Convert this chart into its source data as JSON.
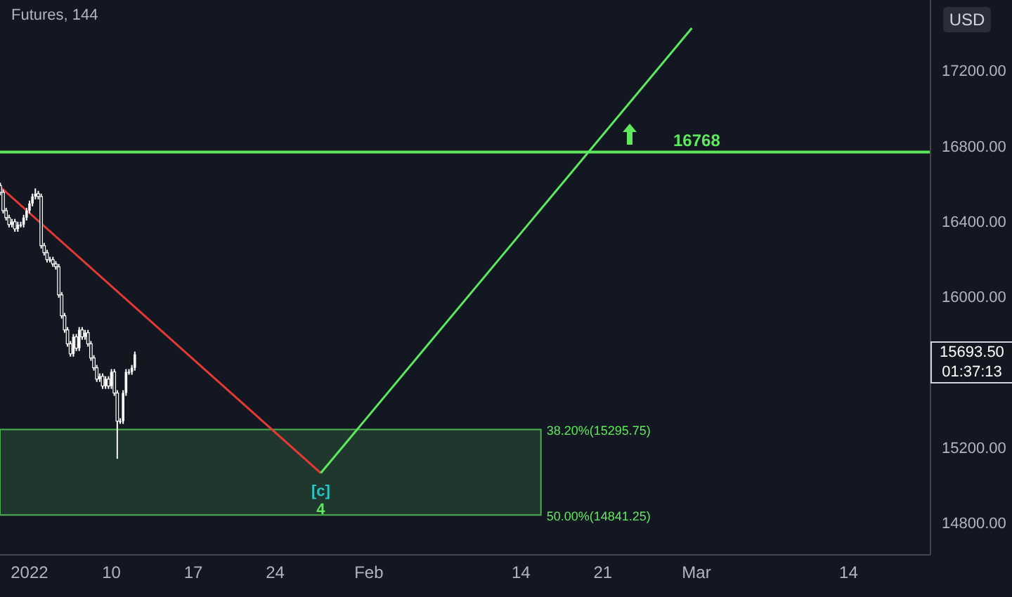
{
  "chart_data": {
    "type": "candlestick",
    "title": "Futures, 144",
    "ylabel": "USD",
    "color": "#ffffff",
    "x": [
      "2021-12-31T12:00",
      "2021-12-31T18:00",
      "2022-01-01T00:00",
      "2022-01-01T06:00",
      "2022-01-01T12:00",
      "2022-01-01T18:00",
      "2022-01-02T00:00",
      "2022-01-02T06:00",
      "2022-01-02T12:00",
      "2022-01-02T18:00",
      "2022-01-03T00:00",
      "2022-01-03T06:00",
      "2022-01-03T12:00",
      "2022-01-03T18:00",
      "2022-01-04T00:00",
      "2022-01-04T06:00",
      "2022-01-04T12:00",
      "2022-01-04T18:00",
      "2022-01-05T00:00",
      "2022-01-05T06:00",
      "2022-01-05T12:00",
      "2022-01-05T18:00",
      "2022-01-06T00:00",
      "2022-01-06T06:00",
      "2022-01-06T12:00",
      "2022-01-06T18:00",
      "2022-01-07T00:00",
      "2022-01-07T06:00",
      "2022-01-07T12:00",
      "2022-01-07T18:00",
      "2022-01-08T00:00",
      "2022-01-08T06:00",
      "2022-01-08T12:00",
      "2022-01-08T18:00",
      "2022-01-09T00:00",
      "2022-01-09T06:00",
      "2022-01-09T12:00",
      "2022-01-09T18:00",
      "2022-01-10T00:00",
      "2022-01-10T06:00",
      "2022-01-10T12:00",
      "2022-01-10T18:00",
      "2022-01-11T00:00",
      "2022-01-11T06:00",
      "2022-01-11T12:00",
      "2022-01-11T18:00",
      "2022-01-12T00:00"
    ],
    "ohlc": [
      [
        16590,
        16605,
        16539,
        16554
      ],
      [
        16554,
        16569,
        16442,
        16457
      ],
      [
        16457,
        16472,
        16405,
        16420
      ],
      [
        16420,
        16435,
        16368,
        16383
      ],
      [
        16383,
        16413,
        16368,
        16398
      ],
      [
        16398,
        16413,
        16345,
        16360
      ],
      [
        16360,
        16398,
        16345,
        16383
      ],
      [
        16383,
        16398,
        16368,
        16383
      ],
      [
        16383,
        16435,
        16368,
        16420
      ],
      [
        16420,
        16472,
        16405,
        16457
      ],
      [
        16457,
        16510,
        16442,
        16495
      ],
      [
        16495,
        16547,
        16480,
        16532
      ],
      [
        16532,
        16575,
        16517,
        16547
      ],
      [
        16547,
        16562,
        16517,
        16532
      ],
      [
        16532,
        16547,
        16256,
        16271
      ],
      [
        16271,
        16286,
        16219,
        16234
      ],
      [
        16234,
        16249,
        16182,
        16197
      ],
      [
        16197,
        16212,
        16182,
        16197
      ],
      [
        16197,
        16212,
        16159,
        16174
      ],
      [
        16174,
        16189,
        16144,
        16159
      ],
      [
        16159,
        16174,
        15995,
        16010
      ],
      [
        16010,
        16025,
        15884,
        15899
      ],
      [
        15899,
        15914,
        15809,
        15824
      ],
      [
        15824,
        15839,
        15735,
        15750
      ],
      [
        15750,
        15765,
        15682,
        15697
      ],
      [
        15697,
        15802,
        15682,
        15787
      ],
      [
        15787,
        15802,
        15712,
        15727
      ],
      [
        15727,
        15839,
        15712,
        15824
      ],
      [
        15824,
        15839,
        15772,
        15787
      ],
      [
        15787,
        15824,
        15772,
        15809
      ],
      [
        15809,
        15824,
        15735,
        15750
      ],
      [
        15750,
        15765,
        15660,
        15675
      ],
      [
        15675,
        15690,
        15608,
        15623
      ],
      [
        15623,
        15638,
        15548,
        15563
      ],
      [
        15563,
        15593,
        15548,
        15578
      ],
      [
        15578,
        15593,
        15511,
        15526
      ],
      [
        15526,
        15578,
        15511,
        15563
      ],
      [
        15563,
        15578,
        15511,
        15526
      ],
      [
        15526,
        15616,
        15511,
        15601
      ],
      [
        15601,
        15616,
        15474,
        15489
      ],
      [
        15489,
        15504,
        15140,
        15340
      ],
      [
        15340,
        15355,
        15325,
        15340
      ],
      [
        15340,
        15504,
        15325,
        15489
      ],
      [
        15489,
        15616,
        15474,
        15601
      ],
      [
        15601,
        15616,
        15586,
        15601
      ],
      [
        15601,
        15638,
        15586,
        15623
      ],
      [
        15623,
        15709,
        15608,
        15694
      ]
    ],
    "series": [
      {
        "type": "line",
        "color": "#e53935",
        "x": [
          "2021-12-31T11:30",
          "2022-01-27T21:30"
        ],
        "values": [
          16584,
          15064
        ]
      },
      {
        "type": "line",
        "color": "#5ee85e",
        "x": [
          "2022-01-27T21:30",
          "2022-02-28T14:30"
        ],
        "values": [
          15064,
          17426
        ]
      }
    ],
    "xlim": [
      "2021-12-31T11:30",
      "2022-03-21"
    ],
    "xticks": [
      {
        "value": "2022-01-03",
        "label": "2022"
      },
      {
        "value": "2022-01-10",
        "label": "10"
      },
      {
        "value": "2022-01-17",
        "label": "17"
      },
      {
        "value": "2022-01-24",
        "label": "24"
      },
      {
        "value": "2022-02-01",
        "label": "Feb"
      },
      {
        "value": "2022-02-14",
        "label": "14"
      },
      {
        "value": "2022-02-21",
        "label": "21"
      },
      {
        "value": "2022-03-01",
        "label": "Mar"
      },
      {
        "value": "2022-03-14",
        "label": "14"
      }
    ],
    "ylim": [
      14630,
      17575
    ],
    "yticks": [
      {
        "value": 14800,
        "label": "14800.00"
      },
      {
        "value": 15200,
        "label": "15200.00"
      },
      {
        "value": 16000,
        "label": "16000.00"
      },
      {
        "value": 16400,
        "label": "16400.00"
      },
      {
        "value": 16800,
        "label": "16800.00"
      },
      {
        "value": 17200,
        "label": "17200.00"
      }
    ],
    "bands": [
      {
        "axis": "y",
        "from": 14841.25,
        "to": 15295.75,
        "color": "#4caf50"
      }
    ],
    "ref_lines": [
      {
        "axis": "y",
        "value": 16768,
        "label": "16768",
        "color": "#5ee85e"
      }
    ],
    "annotations": [
      {
        "text": "38.20%(15295.75)",
        "x": "2022-02-15T17:00",
        "y": 15295.75
      },
      {
        "text": "50.00%(14841.25)",
        "x": "2022-02-15T17:00",
        "y": 14841.25
      },
      {
        "text": "[c]",
        "x": "2022-01-27T21:30",
        "y": 15064
      },
      {
        "text": "4",
        "x": "2022-01-27T21:30",
        "y": 15064
      },
      "15693.50",
      "01:37:13"
    ],
    "grid": false,
    "legend": false,
    "marker": "none",
    "line_style": "solid"
  }
}
